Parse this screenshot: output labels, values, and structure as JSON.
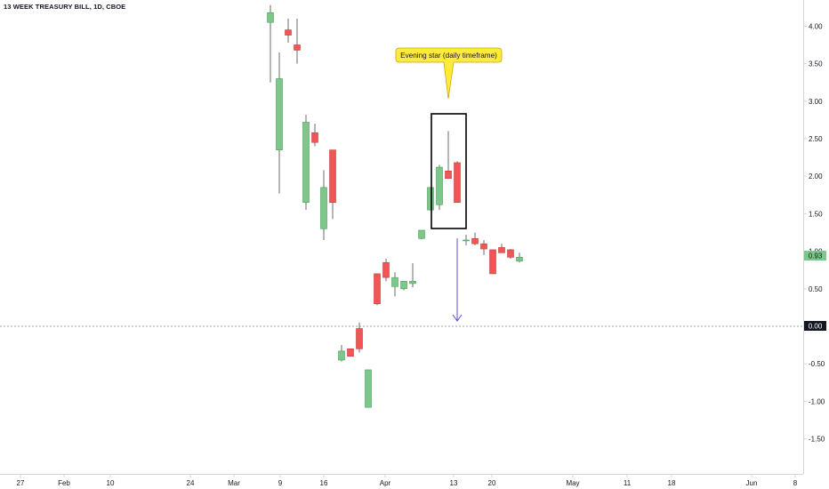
{
  "header": {
    "symbol_title": "13 WEEK TREASURY BILL, 1D, CBOE"
  },
  "annotation": {
    "text": "Evening star (daily timeframe)",
    "bg_color": "#ffeb3b"
  },
  "price_labels": {
    "last_price": "0.93",
    "zero_line": "0.00"
  },
  "colors": {
    "up": "#7dc78a",
    "down": "#f15656",
    "box": "#000000",
    "arrow": "#5c4de0",
    "last_price_bg": "#7dc78a",
    "zero_line": "#9aa0a6"
  },
  "chart_data": {
    "type": "candlestick",
    "title": "13 WEEK TREASURY BILL, 1D, CBOE",
    "xlabel": "",
    "ylabel": "",
    "ylim": [
      -2.0,
      4.3
    ],
    "y_ticks": [
      "4.00",
      "3.50",
      "3.00",
      "2.50",
      "2.00",
      "1.50",
      "1.00",
      "0.50",
      "0.00",
      "-0.50",
      "-1.00",
      "-1.50"
    ],
    "x_ticks": [
      "27",
      "Feb",
      "10",
      "24",
      "Mar",
      "9",
      "16",
      "Apr",
      "13",
      "20",
      "May",
      "11",
      "18",
      "Jun",
      "8"
    ],
    "grid": false,
    "candles": [
      {
        "date": "Mar 9",
        "open": 4.05,
        "high": 4.28,
        "low": 3.25,
        "close": 4.18
      },
      {
        "date": "Mar 10",
        "open": 3.95,
        "high": 4.1,
        "low": 3.78,
        "close": 3.88
      },
      {
        "date": "Mar 11",
        "open": 3.75,
        "high": 4.1,
        "low": 3.5,
        "close": 3.68
      },
      {
        "date": "Mar 12",
        "open": 2.35,
        "high": 3.65,
        "low": 1.77,
        "close": 3.3
      },
      {
        "date": "Mar 13",
        "open": 1.65,
        "high": 2.82,
        "low": 1.55,
        "close": 2.72
      },
      {
        "date": "Mar 16",
        "open": 2.58,
        "high": 2.7,
        "low": 2.4,
        "close": 2.45
      },
      {
        "date": "Mar 17",
        "open": 1.3,
        "high": 2.08,
        "low": 1.15,
        "close": 1.85
      },
      {
        "date": "Mar 18",
        "open": 2.35,
        "high": 2.35,
        "low": 1.43,
        "close": 1.65
      },
      {
        "date": "Mar 23",
        "open": -0.45,
        "high": -0.25,
        "low": -0.47,
        "close": -0.33
      },
      {
        "date": "Mar 24",
        "open": -0.3,
        "high": -0.32,
        "low": -0.4,
        "close": -0.4
      },
      {
        "date": "Mar 25",
        "open": -0.03,
        "high": 0.05,
        "low": -0.35,
        "close": -0.3
      },
      {
        "date": "Mar 26",
        "open": -1.08,
        "high": -0.58,
        "low": -1.08,
        "close": -0.58
      },
      {
        "date": "Mar 27",
        "open": 0.7,
        "high": 0.7,
        "low": 0.28,
        "close": 0.3
      },
      {
        "date": "Mar 30",
        "open": 0.85,
        "high": 0.9,
        "low": 0.6,
        "close": 0.65
      },
      {
        "date": "Mar 31",
        "open": 0.53,
        "high": 0.72,
        "low": 0.4,
        "close": 0.65
      },
      {
        "date": "Apr 1",
        "open": 0.5,
        "high": 0.6,
        "low": 0.48,
        "close": 0.6
      },
      {
        "date": "Apr 2",
        "open": 0.57,
        "high": 0.84,
        "low": 0.52,
        "close": 0.6
      },
      {
        "date": "Apr 6",
        "open": 1.17,
        "high": 1.28,
        "low": 1.16,
        "close": 1.28
      },
      {
        "date": "Apr 7",
        "open": 1.55,
        "high": 1.85,
        "low": 1.55,
        "close": 1.85
      },
      {
        "date": "Apr 8",
        "open": 1.62,
        "high": 2.15,
        "low": 1.55,
        "close": 2.12
      },
      {
        "date": "Apr 9",
        "open": 2.07,
        "high": 2.6,
        "low": 1.97,
        "close": 1.97
      },
      {
        "date": "Apr 10",
        "open": 2.18,
        "high": 2.2,
        "low": 1.65,
        "close": 1.65
      },
      {
        "date": "Apr 14",
        "open": 1.15,
        "high": 1.22,
        "low": 1.08,
        "close": 1.15
      },
      {
        "date": "Apr 15",
        "open": 1.17,
        "high": 1.25,
        "low": 1.08,
        "close": 1.1
      },
      {
        "date": "Apr 16",
        "open": 1.1,
        "high": 1.15,
        "low": 0.95,
        "close": 1.03
      },
      {
        "date": "Apr 17",
        "open": 1.02,
        "high": 1.02,
        "low": 0.7,
        "close": 0.7
      },
      {
        "date": "Apr 20",
        "open": 1.05,
        "high": 1.1,
        "low": 0.98,
        "close": 0.98
      },
      {
        "date": "Apr 21",
        "open": 1.02,
        "high": 1.03,
        "low": 0.9,
        "close": 0.92
      },
      {
        "date": "Apr 22",
        "open": 0.87,
        "high": 0.98,
        "low": 0.85,
        "close": 0.92
      }
    ]
  }
}
